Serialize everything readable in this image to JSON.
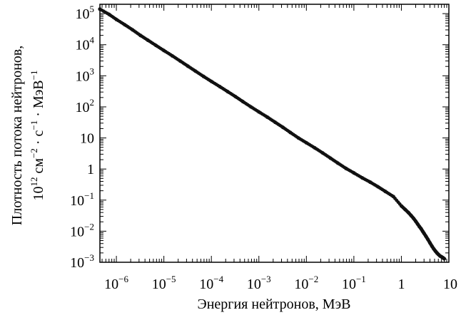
{
  "chart_data": {
    "type": "scatter",
    "title": "",
    "xlabel": "Энергия нейтронов, МэВ",
    "ylabel": {
      "line1": "Плотность потока нейтронов,",
      "line2": {
        "base": "10",
        "exp": "12",
        "unit1": " см",
        "exp1": "−2",
        "dot1": " · с",
        "exp2": "−1",
        "dot2": " · МэВ",
        "exp3": "−1"
      }
    },
    "x_scale": "log",
    "y_scale": "log",
    "xlim": [
      4.5e-07,
      10
    ],
    "ylim": [
      0.001,
      200000
    ],
    "grid": false,
    "legend": "none",
    "marker_color": "#111111",
    "x_ticks": [
      {
        "value": 1e-06,
        "base": "10",
        "exp": "−6"
      },
      {
        "value": 1e-05,
        "base": "10",
        "exp": "−5"
      },
      {
        "value": 0.0001,
        "base": "10",
        "exp": "−4"
      },
      {
        "value": 0.001,
        "base": "10",
        "exp": "−3"
      },
      {
        "value": 0.01,
        "base": "10",
        "exp": "−2"
      },
      {
        "value": 0.1,
        "base": "10",
        "exp": "−1"
      },
      {
        "value": 1,
        "base": "1",
        "exp": ""
      },
      {
        "value": 10,
        "base": "10",
        "exp": ""
      }
    ],
    "y_ticks": [
      {
        "value": 100000,
        "base": "10",
        "exp": "5"
      },
      {
        "value": 10000,
        "base": "10",
        "exp": "4"
      },
      {
        "value": 1000,
        "base": "10",
        "exp": "3"
      },
      {
        "value": 100,
        "base": "10",
        "exp": "2"
      },
      {
        "value": 10,
        "base": "10",
        "exp": ""
      },
      {
        "value": 1,
        "base": "1",
        "exp": ""
      },
      {
        "value": 0.1,
        "base": "10",
        "exp": "−1"
      },
      {
        "value": 0.01,
        "base": "10",
        "exp": "−2"
      },
      {
        "value": 0.001,
        "base": "10",
        "exp": "−3"
      }
    ],
    "series": [
      {
        "x": [
          4.5e-07,
          7e-07,
          1e-06,
          1.5e-06,
          2.2e-06,
          3.2e-06,
          4.6e-06,
          6.8e-06,
          1e-05,
          1.5e-05,
          2.2e-05,
          3.2e-05,
          4.6e-05,
          6.8e-05,
          0.0001,
          0.00015,
          0.00022,
          0.00032,
          0.00046,
          0.00068,
          0.001,
          0.0015,
          0.0022,
          0.0032,
          0.0046,
          0.0068,
          0.01,
          0.015,
          0.022,
          0.032,
          0.046,
          0.068,
          0.1,
          0.15,
          0.22,
          0.32,
          0.46,
          0.68,
          1.0,
          1.2,
          1.4,
          1.6,
          1.8,
          2.0,
          2.2,
          2.4,
          2.6,
          2.8,
          3.0,
          3.3,
          3.6,
          4.0,
          4.4,
          4.8,
          5.2,
          5.6,
          6.0,
          6.5,
          7.0,
          7.5,
          8.0
        ],
        "y": [
          140000,
          95000,
          65000,
          44000,
          30000,
          20000,
          14000,
          9500,
          6500,
          4400,
          3000,
          2050,
          1420,
          960,
          660,
          450,
          310,
          215,
          148,
          100,
          69,
          47,
          32,
          22,
          15,
          10,
          7,
          4.8,
          3.3,
          2.25,
          1.55,
          1.05,
          0.75,
          0.52,
          0.38,
          0.27,
          0.19,
          0.13,
          0.065,
          0.05,
          0.04,
          0.032,
          0.026,
          0.021,
          0.017,
          0.014,
          0.012,
          0.01,
          0.0085,
          0.0068,
          0.0055,
          0.0042,
          0.0033,
          0.0027,
          0.0023,
          0.002,
          0.0018,
          0.0016,
          0.0015,
          0.0014,
          0.0013
        ]
      }
    ]
  }
}
